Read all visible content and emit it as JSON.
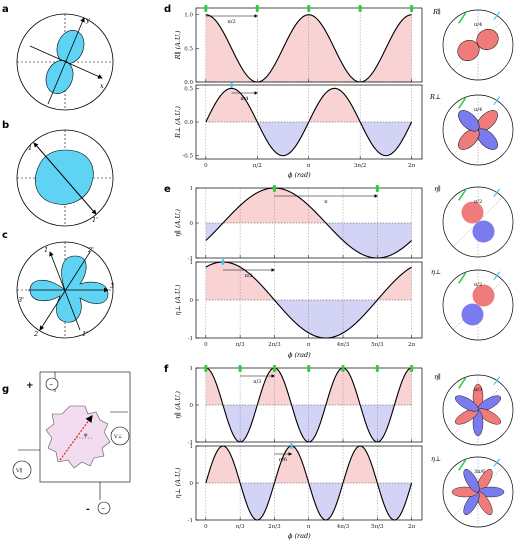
{
  "panel_labels": {
    "a": "a",
    "b": "b",
    "c": "c",
    "d": "d",
    "e": "e",
    "f": "f",
    "g": "g"
  },
  "colors": {
    "cyan": "#5fd3f3",
    "pos_fill": "#f9d3d3",
    "neg_fill": "#d3d3f5",
    "lobe_pos": "#f07b7b",
    "lobe_neg": "#7b7bf0",
    "green": "#2ecc40",
    "light_blue": "#49c6f0"
  },
  "panel_a": {
    "axis_x": "x",
    "axis_y": "y"
  },
  "panel_b": {
    "axis_1": "1",
    "axis_1p": "1'"
  },
  "panel_c": {
    "axis_1": "1",
    "axis_1p": "1'",
    "axis_2": "2",
    "axis_2p": "2'",
    "axis_3": "3",
    "axis_3p": "3'"
  },
  "panel_g": {
    "plus": "+",
    "minus": "-",
    "tilde": "~",
    "v_par": "V∥",
    "v_perp": "V⊥",
    "phi": "φ"
  },
  "phi_ticks_pi2": [
    "0",
    "π/2",
    "π",
    "3π/2",
    "2π"
  ],
  "phi_ticks_pi3": [
    "0",
    "π/3",
    "2π/3",
    "π",
    "4π/3",
    "5π/3",
    "2π"
  ],
  "x_axis_label": "ϕ (rad)",
  "chart_data": [
    {
      "type": "line",
      "panel": "d-top",
      "ylabel": "R∥ (A.U.)",
      "x_range": [
        0,
        6.2832
      ],
      "ylim": [
        0,
        1.1
      ],
      "yticks": [
        "0.0",
        "0.5",
        "1.0"
      ],
      "function": "cos^2(phi)",
      "annotation": "π/2",
      "series": [
        {
          "values_at_x": [
            [
              0,
              1.0
            ],
            [
              0.785,
              0.5
            ],
            [
              1.571,
              0.0
            ],
            [
              3.142,
              1.0
            ],
            [
              4.712,
              0.0
            ],
            [
              6.283,
              1.0
            ]
          ]
        }
      ]
    },
    {
      "type": "line",
      "panel": "d-bottom",
      "ylabel": "R⊥ (A.U.)",
      "x_range": [
        0,
        6.2832
      ],
      "ylim": [
        -0.55,
        0.55
      ],
      "yticks": [
        "0.5",
        "0.0",
        "-0.5"
      ],
      "function": "0.5*sin(2phi)",
      "annotation": "π/4",
      "series": [
        {
          "values_at_x": [
            [
              0,
              0.0
            ],
            [
              0.785,
              0.5
            ],
            [
              1.571,
              0.0
            ],
            [
              2.356,
              -0.5
            ],
            [
              3.927,
              0.5
            ],
            [
              6.283,
              0.0
            ]
          ]
        }
      ]
    },
    {
      "type": "line",
      "panel": "e-top",
      "ylabel": "η∥ (A.U.)",
      "x_range": [
        0,
        6.2832
      ],
      "ylim": [
        -1,
        1
      ],
      "yticks": [
        "1",
        "0",
        "-1"
      ],
      "function": "cos(phi-2π/3)",
      "annotation": "π",
      "series": [
        {
          "values_at_x": [
            [
              0,
              -0.5
            ],
            [
              2.094,
              1.0
            ],
            [
              5.236,
              -1.0
            ],
            [
              6.283,
              -0.5
            ]
          ]
        }
      ]
    },
    {
      "type": "line",
      "panel": "e-bottom",
      "ylabel": "η⊥ (A.U.)",
      "x_range": [
        0,
        6.2832
      ],
      "ylim": [
        -1,
        1
      ],
      "yticks": [
        "1",
        "0",
        "-1"
      ],
      "function": "cos(phi-π/6)",
      "annotation": "π/2",
      "series": [
        {
          "values_at_x": [
            [
              0,
              0.87
            ],
            [
              0.524,
              1.0
            ],
            [
              3.665,
              -1.0
            ],
            [
              6.283,
              0.87
            ]
          ]
        }
      ]
    },
    {
      "type": "line",
      "panel": "f-top",
      "ylabel": "η∥ (A.U.)",
      "x_range": [
        0,
        6.2832
      ],
      "ylim": [
        -1,
        1
      ],
      "yticks": [
        "1",
        "0",
        "-1"
      ],
      "function": "cos(3phi)",
      "annotation": "π/3",
      "series": [
        {
          "values_at_x": [
            [
              0,
              1.0
            ],
            [
              1.047,
              -1.0
            ],
            [
              2.094,
              1.0
            ],
            [
              3.142,
              -1.0
            ],
            [
              4.189,
              1.0
            ],
            [
              5.236,
              -1.0
            ],
            [
              6.283,
              1.0
            ]
          ]
        }
      ]
    },
    {
      "type": "line",
      "panel": "f-bottom",
      "ylabel": "η⊥ (A.U.)",
      "x_range": [
        0,
        6.2832
      ],
      "ylim": [
        -1,
        1
      ],
      "yticks": [
        "1",
        "0",
        "-1"
      ],
      "function": "sin(3phi)",
      "annotation": "π/6",
      "series": [
        {
          "values_at_x": [
            [
              0,
              0.0
            ],
            [
              0.524,
              1.0
            ],
            [
              1.571,
              -1.0
            ],
            [
              2.618,
              1.0
            ],
            [
              6.283,
              0.0
            ]
          ]
        }
      ]
    }
  ],
  "polar_labels": {
    "d1": "R∥",
    "d2": "R⊥",
    "e1": "η∥",
    "e2": "η⊥",
    "f1": "η∥",
    "f2": "η⊥",
    "ang_d1": "π/4",
    "ang_d2": "π/4",
    "ang_e1": "π/2",
    "ang_e2": "π/2",
    "ang_f1": "π/3",
    "ang_f2": "3π/6"
  }
}
